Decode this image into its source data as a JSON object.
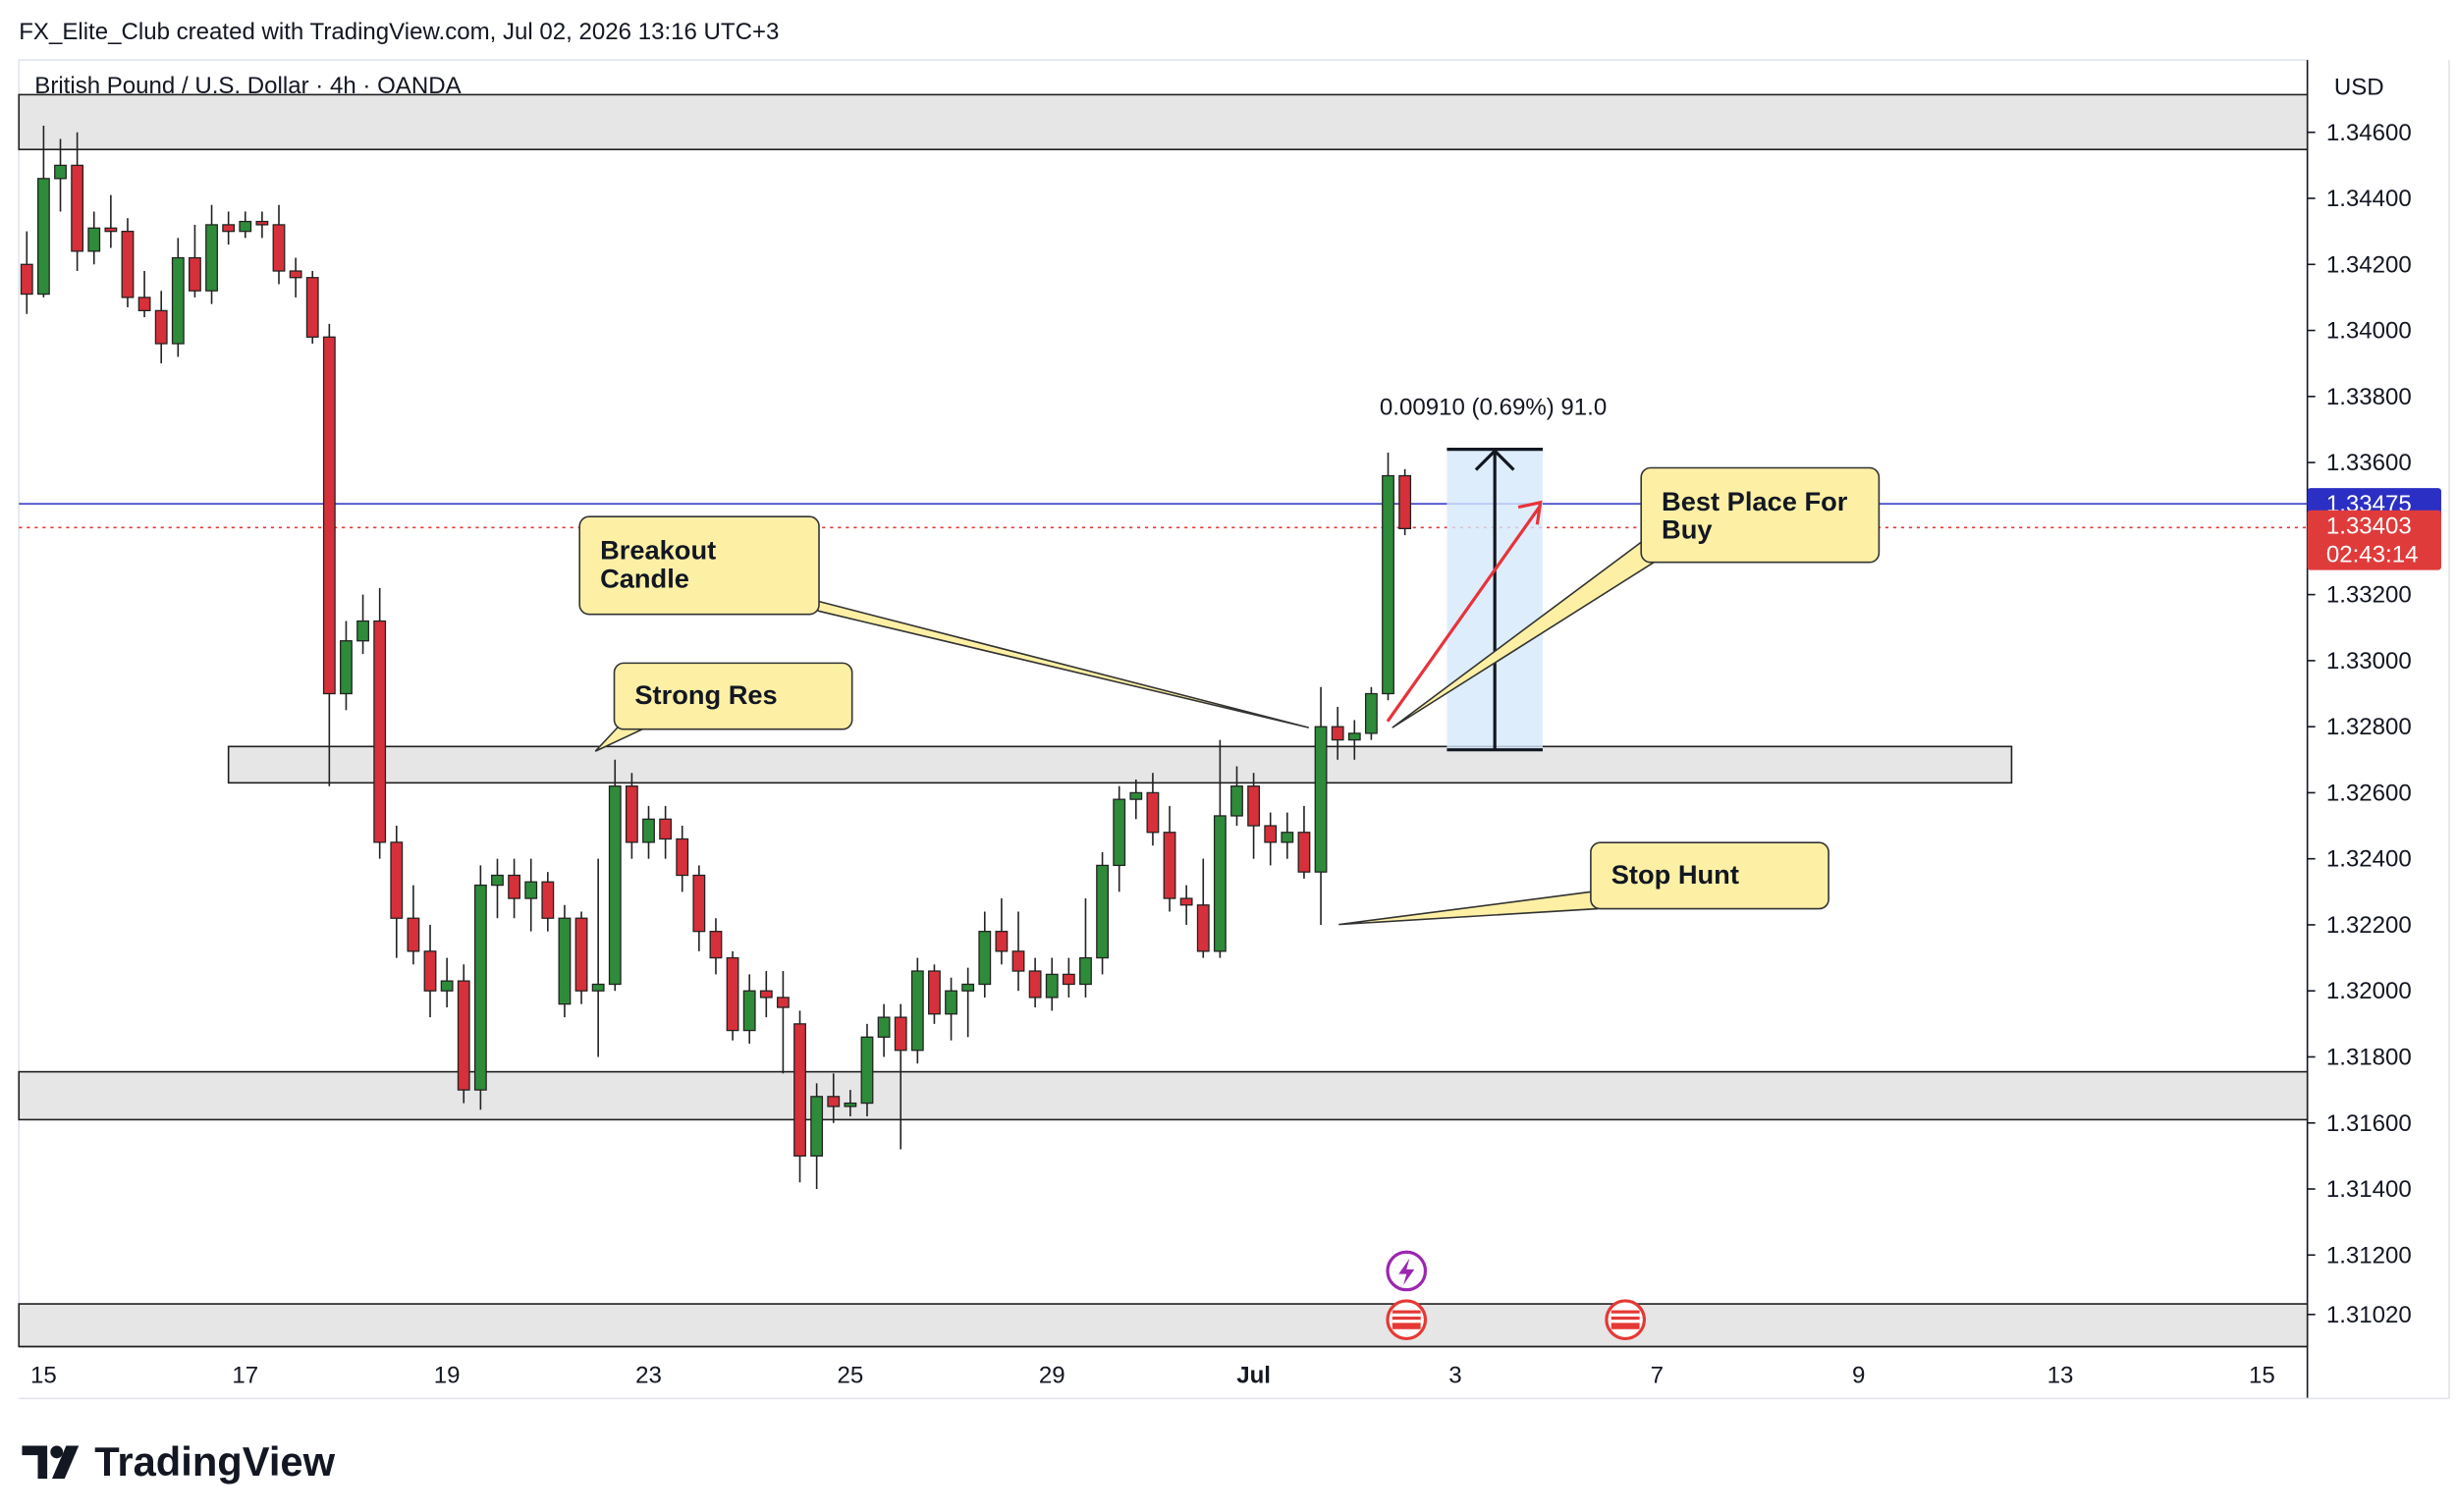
{
  "header": {
    "credit": "FX_Elite_Club created with TradingView.com, Jul 02, 2026 13:16 UTC+3"
  },
  "footer": {
    "brand": "TradingView"
  },
  "chart_data": {
    "type": "candlestick",
    "title": "British Pound / U.S. Dollar · 4h · OANDA",
    "y_axis_label": "USD",
    "up_color": "#2e8b3a",
    "down_color": "#d6303a",
    "open": [
      1.342,
      1.3411,
      1.3446,
      1.345,
      1.3424,
      1.3431,
      1.343,
      1.341,
      1.3406,
      1.3396,
      1.3422,
      1.3412,
      1.3432,
      1.343,
      1.3433,
      1.3432,
      1.3418,
      1.3416,
      1.3398,
      1.329,
      1.3306,
      1.3312,
      1.3245,
      1.3222,
      1.3212,
      1.32,
      1.3203,
      1.317,
      1.3232,
      1.3235,
      1.3228,
      1.3233,
      1.3196,
      1.3222,
      1.32,
      1.3202,
      1.3262,
      1.3245,
      1.3252,
      1.3246,
      1.3235,
      1.3218,
      1.321,
      1.3188,
      1.32,
      1.3198,
      1.319,
      1.315,
      1.3168,
      1.3165,
      1.3166,
      1.3186,
      1.3192,
      1.3182,
      1.3206,
      1.3193,
      1.32,
      1.3202,
      1.3218,
      1.3212,
      1.3206,
      1.3198,
      1.3205,
      1.3202,
      1.321,
      1.3238,
      1.3258,
      1.326,
      1.3248,
      1.3228,
      1.3226,
      1.3212,
      1.3253,
      1.3262,
      1.325,
      1.3245,
      1.3248,
      1.3236,
      1.328,
      1.3276,
      1.3278,
      1.329,
      1.3356
    ],
    "high": [
      1.343,
      1.3462,
      1.3458,
      1.346,
      1.3436,
      1.3441,
      1.3434,
      1.3418,
      1.3412,
      1.3428,
      1.3432,
      1.3438,
      1.3436,
      1.3436,
      1.3436,
      1.3438,
      1.3422,
      1.3418,
      1.3402,
      1.3312,
      1.332,
      1.3322,
      1.325,
      1.3232,
      1.322,
      1.321,
      1.3208,
      1.3238,
      1.324,
      1.324,
      1.324,
      1.3236,
      1.3226,
      1.3224,
      1.324,
      1.327,
      1.3266,
      1.3256,
      1.3256,
      1.325,
      1.3238,
      1.3222,
      1.3212,
      1.3205,
      1.3206,
      1.3206,
      1.3194,
      1.3172,
      1.3175,
      1.317,
      1.319,
      1.3196,
      1.3196,
      1.321,
      1.3208,
      1.3204,
      1.3207,
      1.3224,
      1.3228,
      1.3224,
      1.321,
      1.321,
      1.321,
      1.3228,
      1.3242,
      1.3262,
      1.3264,
      1.3266,
      1.3256,
      1.3232,
      1.324,
      1.3276,
      1.3268,
      1.3266,
      1.3254,
      1.3254,
      1.3256,
      1.3292,
      1.3286,
      1.3282,
      1.3292,
      1.3363,
      1.3358
    ],
    "low": [
      1.3405,
      1.341,
      1.3436,
      1.3418,
      1.342,
      1.3425,
      1.3407,
      1.3404,
      1.339,
      1.3392,
      1.341,
      1.3408,
      1.3426,
      1.3428,
      1.3428,
      1.3414,
      1.341,
      1.3396,
      1.3262,
      1.3285,
      1.3302,
      1.324,
      1.321,
      1.3208,
      1.3192,
      1.3195,
      1.3166,
      1.3164,
      1.3222,
      1.3222,
      1.3218,
      1.3218,
      1.3192,
      1.3196,
      1.318,
      1.32,
      1.324,
      1.324,
      1.324,
      1.323,
      1.3212,
      1.3205,
      1.3185,
      1.3184,
      1.3192,
      1.3175,
      1.3142,
      1.314,
      1.316,
      1.3162,
      1.3162,
      1.318,
      1.3152,
      1.3178,
      1.319,
      1.3185,
      1.3186,
      1.3198,
      1.3208,
      1.32,
      1.3195,
      1.3194,
      1.3198,
      1.3198,
      1.3205,
      1.323,
      1.3252,
      1.3244,
      1.3224,
      1.322,
      1.321,
      1.321,
      1.325,
      1.324,
      1.3238,
      1.324,
      1.3234,
      1.322,
      1.327,
      1.327,
      1.3276,
      1.3288,
      1.3338
    ],
    "close": [
      1.3411,
      1.3446,
      1.345,
      1.3424,
      1.3431,
      1.343,
      1.341,
      1.3406,
      1.3396,
      1.3422,
      1.3412,
      1.3432,
      1.343,
      1.3433,
      1.3432,
      1.3418,
      1.3416,
      1.3398,
      1.329,
      1.3306,
      1.3312,
      1.3245,
      1.3222,
      1.3212,
      1.32,
      1.3203,
      1.317,
      1.3232,
      1.3235,
      1.3228,
      1.3233,
      1.3222,
      1.3222,
      1.32,
      1.3202,
      1.3262,
      1.3245,
      1.3252,
      1.3246,
      1.3235,
      1.3218,
      1.321,
      1.3188,
      1.32,
      1.3198,
      1.3195,
      1.315,
      1.3168,
      1.3165,
      1.3166,
      1.3186,
      1.3192,
      1.3182,
      1.3206,
      1.3193,
      1.32,
      1.3202,
      1.3218,
      1.3212,
      1.3206,
      1.3198,
      1.3205,
      1.3202,
      1.321,
      1.3238,
      1.3258,
      1.326,
      1.3248,
      1.3228,
      1.3226,
      1.3212,
      1.3253,
      1.3262,
      1.325,
      1.3245,
      1.3248,
      1.3236,
      1.328,
      1.3276,
      1.3278,
      1.329,
      1.3356,
      1.334
    ],
    "xlim": [
      -0.47,
      135.7
    ],
    "xticks": [
      {
        "value": 1,
        "label": "15"
      },
      {
        "value": 13,
        "label": "17"
      },
      {
        "value": 25,
        "label": "19"
      },
      {
        "value": 37,
        "label": "23"
      },
      {
        "value": 49,
        "label": "25"
      },
      {
        "value": 61,
        "label": "29"
      },
      {
        "value": 73,
        "label": "Jul"
      },
      {
        "value": 85,
        "label": "3"
      },
      {
        "value": 97,
        "label": "7"
      },
      {
        "value": 109,
        "label": "9"
      },
      {
        "value": 121,
        "label": "13"
      },
      {
        "value": 133,
        "label": "15"
      }
    ],
    "ylim": [
      1.30923,
      1.34819
    ],
    "yticks": [
      {
        "value": 1.346,
        "label": "1.34600"
      },
      {
        "value": 1.344,
        "label": "1.34400"
      },
      {
        "value": 1.342,
        "label": "1.34200"
      },
      {
        "value": 1.34,
        "label": "1.34000"
      },
      {
        "value": 1.338,
        "label": "1.33800"
      },
      {
        "value": 1.336,
        "label": "1.33600"
      },
      {
        "value": 1.332,
        "label": "1.33200"
      },
      {
        "value": 1.33,
        "label": "1.33000"
      },
      {
        "value": 1.328,
        "label": "1.32800"
      },
      {
        "value": 1.326,
        "label": "1.32600"
      },
      {
        "value": 1.324,
        "label": "1.32400"
      },
      {
        "value": 1.322,
        "label": "1.32200"
      },
      {
        "value": 1.32,
        "label": "1.32000"
      },
      {
        "value": 1.318,
        "label": "1.31800"
      },
      {
        "value": 1.316,
        "label": "1.31600"
      },
      {
        "value": 1.314,
        "label": "1.31400"
      },
      {
        "value": 1.312,
        "label": "1.31200"
      },
      {
        "value": 1.3102,
        "label": "1.31020"
      }
    ],
    "zones": [
      {
        "top": 1.34714,
        "bottom": 1.34548
      },
      {
        "top": 1.3274,
        "bottom": 1.3263,
        "x": [
          12,
          118.1
        ]
      },
      {
        "top": 1.31755,
        "bottom": 1.3161
      },
      {
        "top": 1.31052,
        "bottom": 1.30923
      }
    ],
    "price_lines": [
      {
        "value": 1.33475,
        "color": "#2b2fc4"
      },
      {
        "value": 1.33403,
        "color": "#e03b3b",
        "countdown": "02:43:14"
      }
    ],
    "measure": {
      "x": [
        84.5,
        90.2
      ],
      "y": [
        1.3273,
        1.3364
      ],
      "label": "0.00910 (0.69%) 91.0"
    },
    "annotations": [
      {
        "lines": [
          "Breakout",
          "Candle"
        ]
      },
      {
        "lines": [
          "Strong Res"
        ]
      },
      {
        "lines": [
          "Best Place For",
          "Buy"
        ]
      },
      {
        "lines": [
          "Stop Hunt"
        ]
      }
    ]
  }
}
